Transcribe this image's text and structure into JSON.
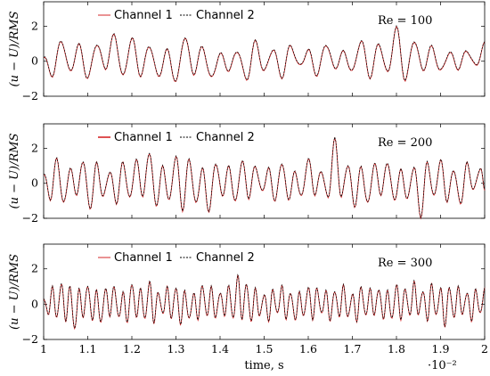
{
  "chart_data": [
    {
      "type": "line",
      "title": "",
      "annotation": "Re = 100",
      "xlabel": "",
      "ylabel": "(u − U)/RMS",
      "xlim": [
        1,
        2
      ],
      "ylim": [
        -2,
        3.4
      ],
      "xticks": [
        "1",
        "1.1",
        "1.2",
        "1.3",
        "1.4",
        "1.5",
        "1.6",
        "1.7",
        "1.8",
        "1.9",
        "2"
      ],
      "yticks": [
        "−2",
        "0",
        "2"
      ],
      "grid": false,
      "legend_position": "top-left",
      "series": [
        {
          "name": "Channel 1",
          "color": "#d62728",
          "style": "solid"
        },
        {
          "name": "Channel 2",
          "color": "#000000",
          "style": "dashed"
        }
      ],
      "signal": {
        "x": [
          1.0,
          1.02,
          1.04,
          1.06,
          1.08,
          1.1,
          1.12,
          1.14,
          1.16,
          1.18,
          1.2,
          1.22,
          1.24,
          1.26,
          1.28,
          1.3,
          1.32,
          1.34,
          1.36,
          1.38,
          1.4,
          1.42,
          1.44,
          1.46,
          1.48,
          1.5,
          1.52,
          1.54,
          1.56,
          1.58,
          1.6,
          1.62,
          1.64,
          1.66,
          1.68,
          1.7,
          1.72,
          1.74,
          1.76,
          1.78,
          1.8,
          1.82,
          1.84,
          1.86,
          1.88,
          1.9,
          1.92,
          1.94,
          1.96,
          1.98,
          2.0
        ],
        "y": [
          0.2,
          -0.8,
          1.2,
          -0.6,
          0.9,
          -1.0,
          1.0,
          -0.4,
          1.5,
          -0.9,
          1.3,
          -0.8,
          0.9,
          -0.9,
          0.6,
          -1.2,
          1.4,
          -0.7,
          0.8,
          -1.0,
          0.4,
          -0.5,
          0.6,
          -1.1,
          1.1,
          -0.6,
          0.7,
          -0.9,
          0.9,
          -0.3,
          0.6,
          -0.8,
          1.0,
          -0.4,
          0.5,
          -0.6,
          1.2,
          -0.9,
          1.0,
          -0.7,
          1.9,
          -1.1,
          1.2,
          -0.5,
          0.8,
          -0.6,
          0.5,
          -0.4,
          0.6,
          -0.3,
          1.0
        ]
      }
    },
    {
      "type": "line",
      "title": "",
      "annotation": "Re = 200",
      "xlabel": "",
      "ylabel": "(u − U)/RMS",
      "xlim": [
        1,
        2
      ],
      "ylim": [
        -2,
        3.4
      ],
      "xticks": [
        "1",
        "1.1",
        "1.2",
        "1.3",
        "1.4",
        "1.5",
        "1.6",
        "1.7",
        "1.8",
        "1.9",
        "2"
      ],
      "yticks": [
        "−2",
        "0",
        "2"
      ],
      "grid": false,
      "legend_position": "top-left",
      "series": [
        {
          "name": "Channel 1",
          "color": "#d62728",
          "style": "solid"
        },
        {
          "name": "Channel 2",
          "color": "#000000",
          "style": "dashed"
        }
      ],
      "signal": {
        "x": [
          1.0,
          1.015,
          1.03,
          1.045,
          1.06,
          1.075,
          1.09,
          1.105,
          1.12,
          1.135,
          1.15,
          1.165,
          1.18,
          1.195,
          1.21,
          1.225,
          1.24,
          1.255,
          1.27,
          1.285,
          1.3,
          1.315,
          1.33,
          1.345,
          1.36,
          1.375,
          1.39,
          1.405,
          1.42,
          1.435,
          1.45,
          1.465,
          1.48,
          1.495,
          1.51,
          1.525,
          1.54,
          1.555,
          1.57,
          1.585,
          1.6,
          1.615,
          1.63,
          1.645,
          1.66,
          1.675,
          1.69,
          1.705,
          1.72,
          1.735,
          1.75,
          1.765,
          1.78,
          1.795,
          1.81,
          1.825,
          1.84,
          1.855,
          1.87,
          1.885,
          1.9,
          1.915,
          1.93,
          1.945,
          1.96,
          1.975,
          1.99,
          2.0
        ],
        "y": [
          0.6,
          -0.9,
          1.4,
          -1.2,
          0.8,
          -0.6,
          1.3,
          -1.5,
          1.1,
          -0.8,
          0.7,
          -1.1,
          1.2,
          -0.9,
          1.3,
          -0.7,
          1.8,
          -1.3,
          0.9,
          -1.0,
          1.6,
          -1.5,
          1.4,
          -1.2,
          0.8,
          -1.6,
          1.2,
          -0.7,
          0.9,
          -1.1,
          1.3,
          -0.8,
          1.0,
          -0.5,
          0.8,
          -1.0,
          1.2,
          -0.9,
          0.6,
          -0.8,
          1.4,
          -0.6,
          0.7,
          -0.9,
          2.5,
          -0.8,
          1.1,
          -1.3,
          0.9,
          -1.2,
          1.1,
          -0.6,
          1.2,
          -1.0,
          0.7,
          -0.9,
          1.0,
          -1.9,
          1.2,
          -0.8,
          1.3,
          -1.0,
          0.8,
          -1.2,
          1.1,
          -0.4,
          0.9,
          -0.3
        ]
      }
    },
    {
      "type": "line",
      "title": "",
      "annotation": "Re = 300",
      "xlabel": "time, s",
      "x_multiplier": "·10⁻²",
      "ylabel": "(u − U)/RMS",
      "xlim": [
        1,
        2
      ],
      "ylim": [
        -2,
        3.4
      ],
      "xticks": [
        "1",
        "1.1",
        "1.2",
        "1.3",
        "1.4",
        "1.5",
        "1.6",
        "1.7",
        "1.8",
        "1.9",
        "2"
      ],
      "yticks": [
        "−2",
        "0",
        "2"
      ],
      "grid": false,
      "legend_position": "top-left",
      "series": [
        {
          "name": "Channel 1",
          "color": "#d62728",
          "style": "solid"
        },
        {
          "name": "Channel 2",
          "color": "#000000",
          "style": "dashed"
        }
      ],
      "signal": {
        "x": [
          1.0,
          1.01,
          1.02,
          1.03,
          1.04,
          1.05,
          1.06,
          1.07,
          1.08,
          1.09,
          1.1,
          1.11,
          1.12,
          1.13,
          1.14,
          1.15,
          1.16,
          1.17,
          1.18,
          1.19,
          1.2,
          1.21,
          1.22,
          1.23,
          1.24,
          1.25,
          1.26,
          1.27,
          1.28,
          1.29,
          1.3,
          1.31,
          1.32,
          1.33,
          1.34,
          1.35,
          1.36,
          1.37,
          1.38,
          1.39,
          1.4,
          1.41,
          1.42,
          1.43,
          1.44,
          1.45,
          1.46,
          1.47,
          1.48,
          1.49,
          1.5,
          1.51,
          1.52,
          1.53,
          1.54,
          1.55,
          1.56,
          1.57,
          1.58,
          1.59,
          1.6,
          1.61,
          1.62,
          1.63,
          1.64,
          1.65,
          1.66,
          1.67,
          1.68,
          1.69,
          1.7,
          1.71,
          1.72,
          1.73,
          1.74,
          1.75,
          1.76,
          1.77,
          1.78,
          1.79,
          1.8,
          1.81,
          1.82,
          1.83,
          1.84,
          1.85,
          1.86,
          1.87,
          1.88,
          1.89,
          1.9,
          1.91,
          1.92,
          1.93,
          1.94,
          1.95,
          1.96,
          1.97,
          1.98,
          1.99,
          2.0
        ],
        "y": [
          0.4,
          -0.6,
          0.9,
          -0.8,
          1.2,
          -0.9,
          1.0,
          -1.5,
          0.8,
          -0.7,
          1.1,
          -0.9,
          0.7,
          -1.1,
          0.9,
          -0.6,
          1.0,
          -0.8,
          0.6,
          -1.0,
          1.2,
          -0.7,
          0.8,
          -0.9,
          1.3,
          -1.0,
          0.7,
          -0.6,
          0.9,
          -0.8,
          1.0,
          -1.1,
          0.7,
          -0.9,
          0.6,
          -0.8,
          1.1,
          -0.7,
          0.9,
          -0.8,
          0.7,
          -0.6,
          1.0,
          -0.9,
          1.6,
          -0.8,
          1.2,
          -1.0,
          0.8,
          -0.7,
          0.6,
          -0.9,
          0.8,
          -0.6,
          1.0,
          -0.8,
          0.7,
          -0.9,
          0.6,
          -0.7,
          1.0,
          -0.8,
          0.9,
          -0.6,
          0.7,
          -0.9,
          0.8,
          -0.7,
          1.0,
          -0.8,
          0.6,
          -0.9,
          1.0,
          -0.7,
          0.8,
          -0.6,
          0.9,
          -0.8,
          0.7,
          -0.9,
          1.1,
          -0.8,
          0.9,
          -0.7,
          1.2,
          -0.6,
          0.8,
          -0.9,
          1.1,
          -0.7,
          0.9,
          -1.2,
          1.0,
          -0.8,
          0.9,
          -0.6,
          0.7,
          -0.9,
          0.8,
          -0.6,
          0.9
        ]
      }
    }
  ]
}
